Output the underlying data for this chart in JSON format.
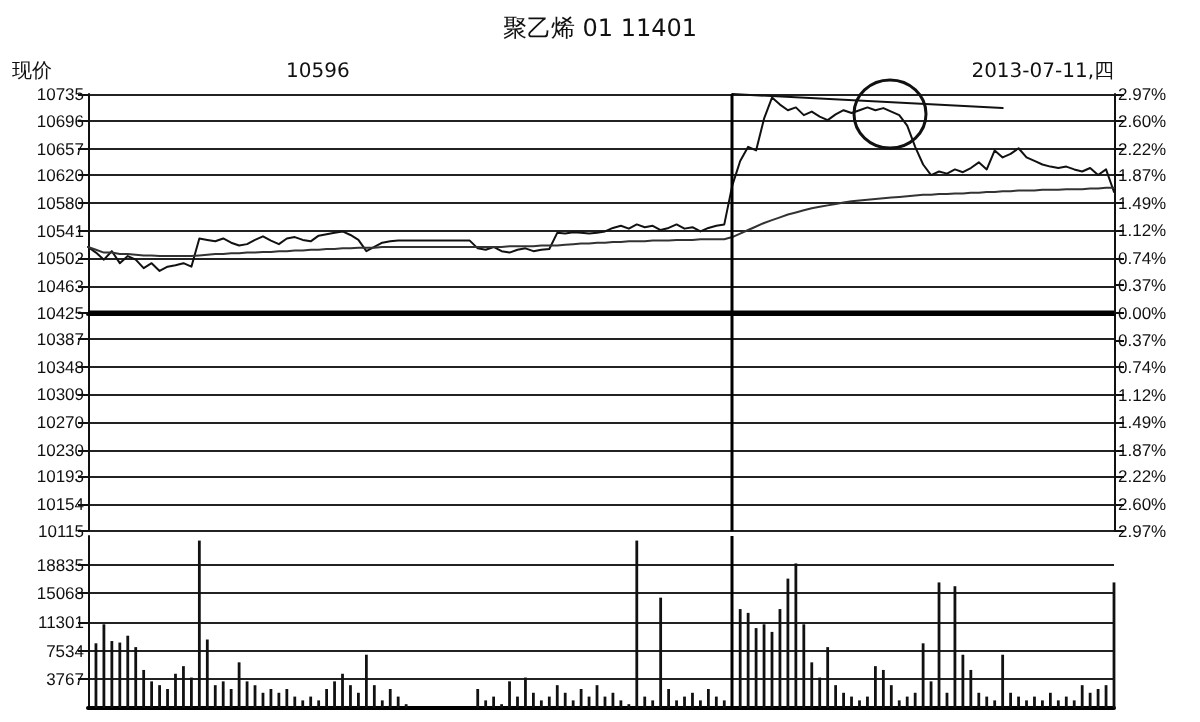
{
  "chart_data": [
    {
      "type": "line",
      "title": "聚乙烯 01 11401",
      "annotations": [
        "现价",
        "10596",
        "2013-07-11,四"
      ],
      "categories": [
        null,
        null,
        null,
        null,
        null,
        null,
        null,
        null,
        null,
        null,
        null,
        null,
        null,
        null,
        null,
        null,
        null,
        null,
        null,
        null,
        null,
        null,
        null,
        null,
        null,
        null,
        null,
        null,
        null,
        null,
        null,
        null,
        null,
        null,
        null,
        null,
        null,
        null,
        null,
        null,
        null,
        null,
        null,
        null,
        null,
        null,
        null,
        null,
        null,
        null,
        null,
        null,
        null,
        null,
        null,
        null,
        null,
        null,
        null,
        null,
        null,
        null,
        null,
        null,
        null,
        null,
        null,
        null,
        null,
        null,
        null,
        null,
        null,
        null,
        null,
        null,
        null,
        null,
        null,
        null,
        null,
        null,
        null,
        null,
        null,
        null,
        null,
        null,
        null,
        null,
        null,
        null,
        null,
        null,
        null,
        null,
        null,
        null,
        null,
        null,
        null,
        null,
        null,
        null,
        null,
        null,
        null,
        null,
        null,
        null,
        null,
        null,
        null,
        null,
        null,
        null,
        null,
        null,
        null,
        null,
        null,
        null,
        null,
        null,
        null,
        null,
        null,
        null,
        null,
        null
      ],
      "series": [
        {
          "color": "#111111",
          "values": [
            10518,
            10510,
            10500,
            10512,
            10495,
            10505,
            10500,
            10488,
            10495,
            10484,
            10490,
            10492,
            10495,
            10490,
            10530,
            10528,
            10526,
            10530,
            10524,
            10520,
            10522,
            10528,
            10533,
            10527,
            10522,
            10530,
            10532,
            10528,
            10526,
            10534,
            10536,
            10538,
            10540,
            10535,
            10528,
            10512,
            10518,
            10524,
            10526,
            10527,
            10527,
            10527,
            10527,
            10527,
            10527,
            10527,
            10527,
            10527,
            10527,
            10516,
            10514,
            10518,
            10512,
            10510,
            10514,
            10516,
            10512,
            10514,
            10515,
            10538,
            10537,
            10539,
            10538,
            10537,
            10538,
            10540,
            10545,
            10548,
            10544,
            10550,
            10546,
            10548,
            10542,
            10545,
            10550,
            10544,
            10546,
            10540,
            10545,
            10548,
            10550,
            10605,
            10640,
            10660,
            10655,
            10700,
            10730,
            10720,
            10712,
            10716,
            10705,
            10710,
            10703,
            10698,
            10706,
            10712,
            10708,
            10712,
            10716,
            10712,
            10715,
            10710,
            10705,
            10690,
            10660,
            10635,
            10620,
            10625,
            10622,
            10628,
            10624,
            10630,
            10638,
            10628,
            10655,
            10645,
            10650,
            10658,
            10645,
            10640,
            10635,
            10632,
            10630,
            10632,
            10628,
            10625,
            10630,
            10620,
            10628,
            10596
          ]
        },
        {
          "color": "#333333",
          "values": [
            10518,
            10514,
            10510,
            10510,
            10508,
            10508,
            10507,
            10506,
            10506,
            10505,
            10505,
            10505,
            10505,
            10505,
            10506,
            10507,
            10508,
            10508,
            10509,
            10509,
            10510,
            10510,
            10511,
            10511,
            10512,
            10512,
            10513,
            10513,
            10514,
            10514,
            10515,
            10515,
            10516,
            10516,
            10517,
            10517,
            10517,
            10518,
            10518,
            10518,
            10518,
            10518,
            10518,
            10518,
            10518,
            10518,
            10518,
            10518,
            10518,
            10518,
            10518,
            10518,
            10518,
            10519,
            10519,
            10519,
            10519,
            10520,
            10520,
            10520,
            10521,
            10522,
            10523,
            10523,
            10524,
            10524,
            10525,
            10525,
            10526,
            10526,
            10526,
            10527,
            10527,
            10527,
            10528,
            10528,
            10528,
            10529,
            10529,
            10529,
            10529,
            10532,
            10537,
            10542,
            10547,
            10552,
            10556,
            10560,
            10564,
            10567,
            10570,
            10573,
            10575,
            10577,
            10579,
            10581,
            10583,
            10584,
            10585,
            10586,
            10587,
            10588,
            10589,
            10590,
            10591,
            10592,
            10592,
            10593,
            10593,
            10594,
            10594,
            10595,
            10595,
            10596,
            10596,
            10597,
            10597,
            10598,
            10598,
            10598,
            10599,
            10599,
            10599,
            10600,
            10600,
            10600,
            10601,
            10601,
            10602,
            10602
          ]
        },
        {
          "color": "#111111",
          "values": [
            null,
            null,
            null,
            null,
            null,
            null,
            null,
            null,
            null,
            null,
            null,
            null,
            null,
            null,
            null,
            null,
            null,
            null,
            null,
            null,
            null,
            null,
            null,
            null,
            null,
            null,
            null,
            null,
            null,
            null,
            null,
            null,
            null,
            null,
            null,
            null,
            null,
            null,
            null,
            null,
            null,
            null,
            null,
            null,
            null,
            null,
            null,
            null,
            null,
            null,
            null,
            null,
            null,
            null,
            null,
            null,
            null,
            null,
            null,
            null,
            null,
            null,
            null,
            null,
            null,
            null,
            null,
            null,
            null,
            null,
            null,
            null,
            null,
            null,
            null,
            null,
            null,
            null,
            null,
            null,
            null,
            10735,
            null,
            null,
            null,
            null,
            null,
            null,
            null,
            null,
            null,
            null,
            null,
            null,
            null,
            null,
            null,
            null,
            null,
            null,
            null,
            null,
            null,
            null,
            null,
            null,
            null,
            null,
            null,
            null,
            null,
            null,
            null,
            null,
            null,
            10715,
            null,
            null,
            null,
            null,
            null,
            null,
            null,
            null,
            null,
            null,
            null,
            null,
            null,
            null
          ]
        }
      ],
      "ylim": [
        10115,
        10735
      ],
      "yticks": [
        10735,
        10696,
        10657,
        10620,
        10580,
        10541,
        10502,
        10463,
        10425,
        10387,
        10348,
        10309,
        10270,
        10230,
        10193,
        10154,
        10115
      ],
      "y2lim": [
        -2.97,
        2.97
      ],
      "y2ticks": [
        {
          "value": 2.97,
          "label": "2.97%"
        },
        {
          "value": 2.6,
          "label": "2.60%"
        },
        {
          "value": 2.22,
          "label": "2.22%"
        },
        {
          "value": 1.87,
          "label": "1.87%"
        },
        {
          "value": 1.49,
          "label": "1.49%"
        },
        {
          "value": 1.12,
          "label": "1.12%"
        },
        {
          "value": 0.74,
          "label": "0.74%"
        },
        {
          "value": 0.37,
          "label": "0.37%"
        },
        {
          "value": 0,
          "label": "0.00%"
        },
        {
          "value": -0.37,
          "label": "0.37%"
        },
        {
          "value": -0.74,
          "label": "0.74%"
        },
        {
          "value": -1.12,
          "label": "1.12%"
        },
        {
          "value": -1.49,
          "label": "1.49%"
        },
        {
          "value": -1.87,
          "label": "1.87%"
        },
        {
          "value": -2.22,
          "label": "2.22%"
        },
        {
          "value": -2.6,
          "label": "2.60%"
        },
        {
          "value": -2.97,
          "label": "2.97%"
        }
      ],
      "ref_lines": [
        {
          "axis": "y",
          "value": 10425,
          "color": "#000000"
        }
      ],
      "grid": "y",
      "tick_labels": "y",
      "line_style": "solid"
    },
    {
      "type": "bar",
      "color": "#111111",
      "categories": [
        null,
        null,
        null,
        null,
        null,
        null,
        null,
        null,
        null,
        null,
        null,
        null,
        null,
        null,
        null,
        null,
        null,
        null,
        null,
        null,
        null,
        null,
        null,
        null,
        null,
        null,
        null,
        null,
        null,
        null,
        null,
        null,
        null,
        null,
        null,
        null,
        null,
        null,
        null,
        null,
        null,
        null,
        null,
        null,
        null,
        null,
        null,
        null,
        null,
        null,
        null,
        null,
        null,
        null,
        null,
        null,
        null,
        null,
        null,
        null,
        null,
        null,
        null,
        null,
        null,
        null,
        null,
        null,
        null,
        null,
        null,
        null,
        null,
        null,
        null,
        null,
        null,
        null,
        null,
        null,
        null,
        null,
        null,
        null,
        null,
        null,
        null,
        null,
        null,
        null,
        null,
        null,
        null,
        null,
        null,
        null,
        null,
        null,
        null,
        null,
        null,
        null,
        null,
        null,
        null,
        null,
        null,
        null,
        null,
        null,
        null,
        null,
        null,
        null,
        null,
        null,
        null,
        null,
        null,
        null,
        null,
        null,
        null,
        null,
        null,
        null,
        null,
        null,
        null,
        null
      ],
      "values": [
        null,
        8500,
        11000,
        8800,
        8600,
        9500,
        8000,
        5000,
        3500,
        3000,
        2500,
        4500,
        5500,
        4000,
        22000,
        9000,
        3000,
        3500,
        2500,
        6000,
        3500,
        3000,
        2000,
        2500,
        2000,
        2500,
        1500,
        1000,
        1500,
        1000,
        2500,
        3500,
        4500,
        3000,
        2000,
        7000,
        3000,
        1000,
        2500,
        1500,
        500,
        null,
        null,
        null,
        null,
        null,
        null,
        null,
        null,
        2500,
        1000,
        1500,
        500,
        3500,
        1500,
        4000,
        2000,
        1000,
        1500,
        3000,
        2000,
        1000,
        2500,
        1500,
        3000,
        1500,
        2000,
        1000,
        500,
        22000,
        1500,
        1000,
        14500,
        2500,
        1000,
        1500,
        2000,
        1000,
        2500,
        1500,
        1000,
        null,
        13000,
        12500,
        10500,
        11000,
        10000,
        13000,
        17000,
        19000,
        11000,
        6000,
        4000,
        8000,
        3000,
        2000,
        1500,
        1000,
        1500,
        5500,
        5000,
        3000,
        1000,
        1500,
        2000,
        8500,
        3500,
        16500,
        2000,
        16000,
        7000,
        5000,
        2000,
        1500,
        1000,
        7000,
        2000,
        1500,
        1000,
        1500,
        1000,
        2000,
        1000,
        1500,
        1000,
        3000,
        2000,
        2500,
        3000,
        16500
      ],
      "ylim": [
        0,
        22602
      ],
      "yticks": [
        3767,
        7534,
        11301,
        15068,
        18835
      ],
      "grid": "y",
      "tick_labels": "y"
    }
  ]
}
